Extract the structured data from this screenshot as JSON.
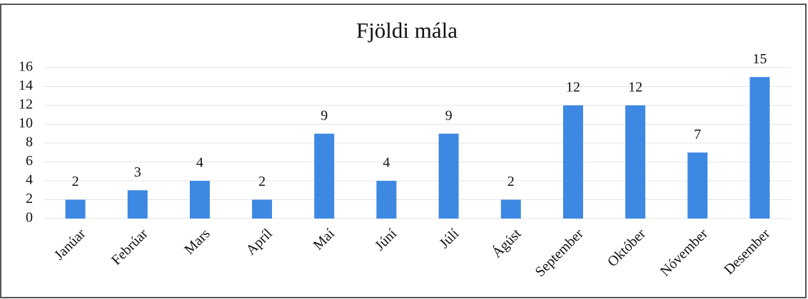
{
  "chart_data": {
    "type": "bar",
    "title": "Fjöldi mála",
    "categories": [
      "Janúar",
      "Febrúar",
      "Mars",
      "Apríl",
      "Maí",
      "Júní",
      "Júlí",
      "Ágúst",
      "September",
      "Október",
      "Nóvember",
      "Desember"
    ],
    "values": [
      2,
      3,
      4,
      2,
      9,
      4,
      9,
      2,
      12,
      12,
      7,
      15
    ],
    "color": "#3d88e3",
    "ylim": [
      0,
      16
    ],
    "yticks": [
      0,
      2,
      4,
      6,
      8,
      10,
      12,
      14,
      16
    ],
    "grid": true
  }
}
